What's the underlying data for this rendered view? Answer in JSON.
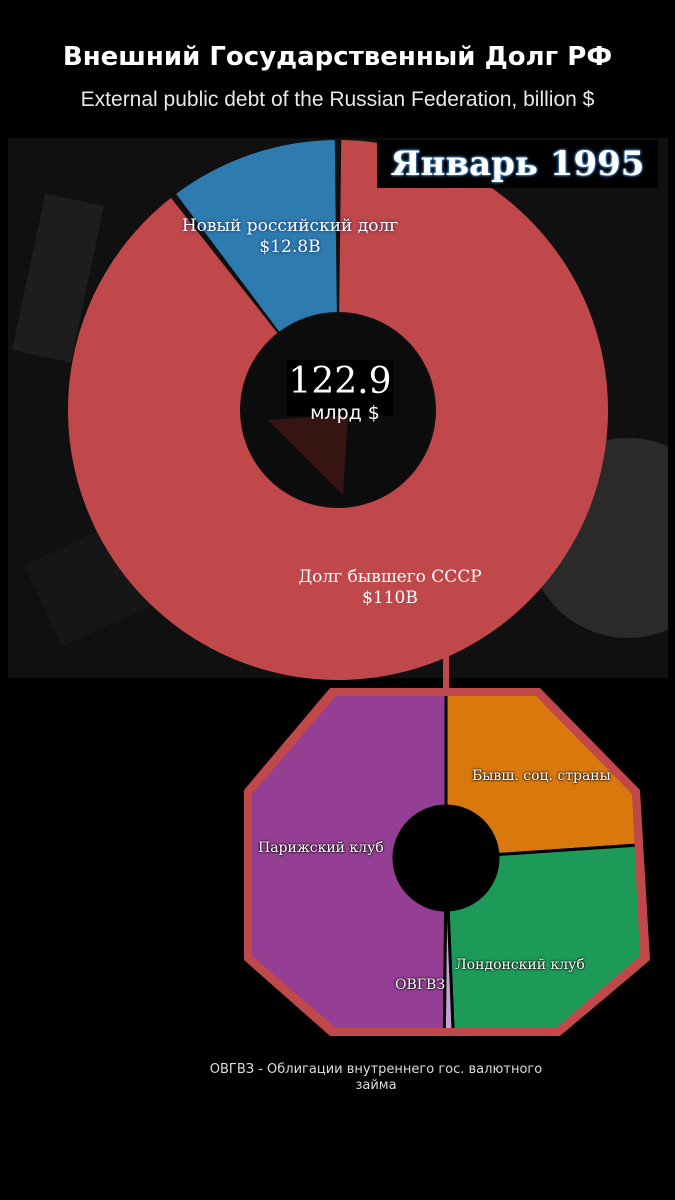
{
  "title": "Внешний Государственный Долг РФ",
  "subtitle": "External public debt of the Russian Federation, billion $",
  "date_label": "Январь 1995",
  "total": {
    "value": "122.9",
    "unit": "млрд $"
  },
  "colors": {
    "ussr_debt": "#c0474a",
    "new_debt": "#2e7bb0",
    "paris_club": "#943f93",
    "former_socialist": "#d9780d",
    "london_club": "#1e9a58",
    "ovgvz": "#c9a2d4",
    "frame": "#c0474a"
  },
  "chart_data": [
    {
      "type": "pie",
      "style": "donut",
      "title": "Внешний Государственный Долг РФ",
      "subtitle": "External public debt of the Russian Federation, billion $",
      "center_value": 122.9,
      "center_unit": "млрд $",
      "slices": [
        {
          "label": "Новый российский долг",
          "value": 12.8,
          "value_label": "$12.8B",
          "color": "#2e7bb0"
        },
        {
          "label": "Долг бывшего СССР",
          "value": 110,
          "value_label": "$110B",
          "color": "#c0474a"
        }
      ]
    },
    {
      "type": "pie",
      "style": "donut",
      "title": "",
      "breakdown_of": "Долг бывшего СССР",
      "slices": [
        {
          "label": "Бывш. соц. страны",
          "value": 24,
          "color": "#d9780d"
        },
        {
          "label": "Лондонский клуб",
          "value": 25.5,
          "color": "#1e9a58"
        },
        {
          "label": "ОВГВЗ",
          "value": 0.8,
          "color": "#c9a2d4"
        },
        {
          "label": "Парижский клуб",
          "value": 50,
          "color": "#943f93"
        }
      ]
    }
  ],
  "footnote": "ОВГВЗ - Облигации внутреннего гос. валютного займа"
}
